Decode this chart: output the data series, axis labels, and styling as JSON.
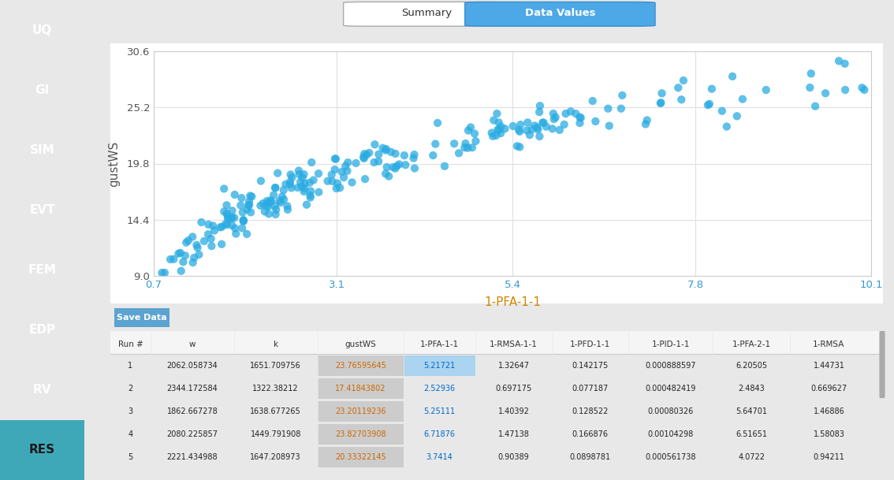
{
  "xlabel": "1-PFA-1-1",
  "ylabel": "gustWS",
  "xlim": [
    0.7,
    10.1
  ],
  "ylim": [
    9.0,
    30.6
  ],
  "xticks": [
    0.7,
    3.1,
    5.4,
    7.8,
    10.1
  ],
  "yticks": [
    9.0,
    14.4,
    19.8,
    25.2,
    30.6
  ],
  "dot_color": "#29ABE2",
  "dot_alpha": 0.75,
  "dot_size": 55,
  "background_color": "#ffffff",
  "outer_bg": "#e8e8e8",
  "plot_bg": "#ffffff",
  "sidebar_color": "#555a63",
  "sidebar_active_color": "#3fa8b8",
  "sidebar_items": [
    "UQ",
    "GI",
    "SIM",
    "EVT",
    "FEM",
    "EDP",
    "RV",
    "RES"
  ],
  "sidebar_active": "RES",
  "tab_labels": [
    "Summary",
    "Data Values"
  ],
  "active_tab": "Data Values",
  "table_headers": [
    "Run #",
    "w",
    "k",
    "gustWS",
    "1-PFA-1-1",
    "1-RMSA-1-1",
    "1-PFD-1-1",
    "1-PID-1-1",
    "1-PFA-2-1",
    "1-RMSA"
  ],
  "table_data": [
    [
      1,
      2062.058734,
      1651.709756,
      23.76595645,
      5.21721,
      1.32647,
      0.142175,
      0.000888597,
      6.20505,
      1.44731
    ],
    [
      2,
      2344.172584,
      1322.38212,
      17.41843802,
      2.52936,
      0.697175,
      0.077187,
      0.000482419,
      2.4843,
      0.669627
    ],
    [
      3,
      1862.667278,
      1638.677265,
      23.20119236,
      5.25111,
      1.40392,
      0.128522,
      0.00080326,
      5.64701,
      1.46886
    ],
    [
      4,
      2080.225857,
      1449.791908,
      23.82703908,
      6.71876,
      1.47138,
      0.166876,
      0.00104298,
      6.51651,
      1.58083
    ],
    [
      5,
      2221.434988,
      1647.208973,
      20.33322145,
      3.7414,
      0.90389,
      0.0898781,
      0.000561738,
      4.0722,
      0.94211
    ]
  ],
  "save_button_color": "#5ba3d0",
  "save_button_text": "Save Data",
  "gustWS_highlight_color": "#cccccc",
  "pfa_highlight_color": "#aad4f0"
}
